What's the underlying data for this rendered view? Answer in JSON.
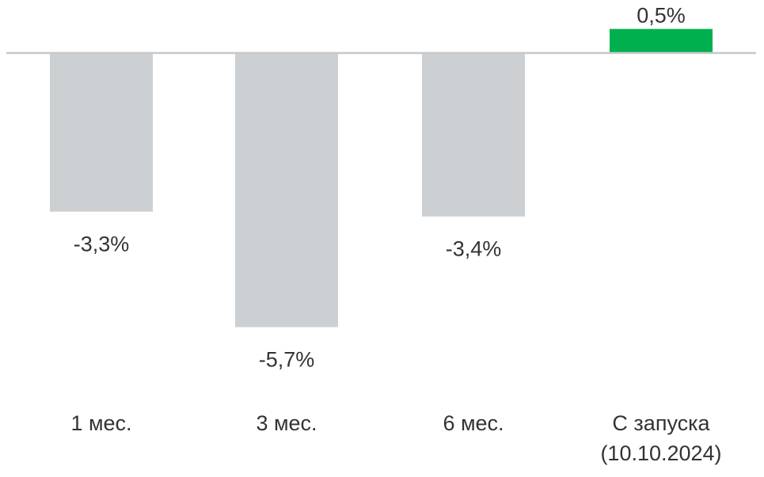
{
  "chart_data": {
    "type": "bar",
    "title": "",
    "xlabel": "",
    "ylabel": "",
    "categories": [
      [
        "1 мес."
      ],
      [
        "3 мес."
      ],
      [
        "6 мес."
      ],
      [
        "С запуска",
        "(10.10.2024)"
      ]
    ],
    "values": [
      -3.3,
      -5.7,
      -3.4,
      0.5
    ],
    "data_labels": [
      "-3,3%",
      "-5,7%",
      "-3,4%",
      "0,5%"
    ],
    "colors": {
      "negative": "#cdd0d3",
      "positive": "#00b04f",
      "axis": "#c8c8c8"
    },
    "grid": false,
    "legend": "none"
  }
}
